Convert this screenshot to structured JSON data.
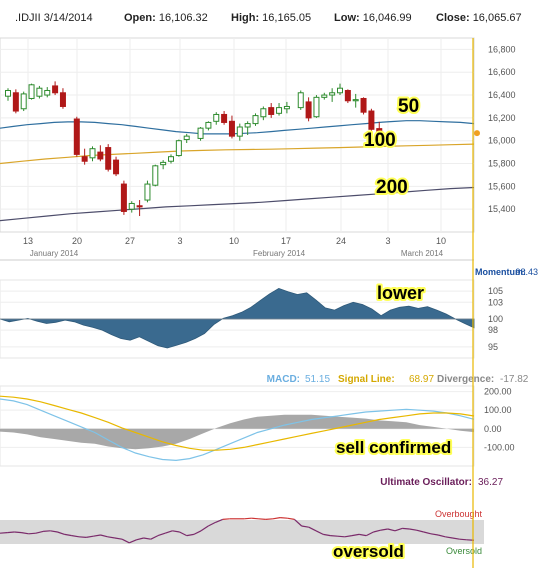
{
  "header": {
    "symbol": ".IDJII 3/14/2014",
    "open_label": "Open:",
    "open": "16,106.32",
    "high_label": "High:",
    "high": "16,165.05",
    "low_label": "Low:",
    "low": "16,046.99",
    "close_label": "Close:",
    "close": "16,065.67"
  },
  "colors": {
    "up": "#2e8b2e",
    "down": "#b01818",
    "ma50": "#2f6f9f",
    "ma100": "#d9a52a",
    "ma200": "#4d4d6b",
    "momentum": "#3a6a8f",
    "macd": "#7ec3e8",
    "signal": "#e8b800",
    "divergence": "#999999",
    "uo": "#7a2a6a",
    "overbought": "#cc3333",
    "cursor": "#e8b800"
  },
  "chart_data": [
    {
      "type": "candlestick",
      "title": ".IDJII 3/14/2014",
      "x_ticks": [
        "13",
        "20",
        "27",
        "3",
        "10",
        "17",
        "24",
        "3",
        "10"
      ],
      "x_months": [
        "January 2014",
        "February 2014",
        "March 2014"
      ],
      "y_ticks": [
        "16,800",
        "16,600",
        "16,400",
        "16,200",
        "16,000",
        "15,800",
        "15,600",
        "15,400"
      ],
      "ylim": [
        15200,
        16900
      ],
      "grid": true,
      "candles": [
        {
          "o": 16390,
          "h": 16460,
          "l": 16350,
          "c": 16440
        },
        {
          "o": 16420,
          "h": 16450,
          "l": 16240,
          "c": 16260
        },
        {
          "o": 16280,
          "h": 16430,
          "l": 16260,
          "c": 16410
        },
        {
          "o": 16370,
          "h": 16500,
          "l": 16360,
          "c": 16490
        },
        {
          "o": 16390,
          "h": 16480,
          "l": 16370,
          "c": 16460
        },
        {
          "o": 16400,
          "h": 16470,
          "l": 16380,
          "c": 16440
        },
        {
          "o": 16480,
          "h": 16520,
          "l": 16400,
          "c": 16420
        },
        {
          "o": 16420,
          "h": 16460,
          "l": 16280,
          "c": 16300
        },
        {
          "o": 16190,
          "h": 16210,
          "l": 15860,
          "c": 15880
        },
        {
          "o": 15860,
          "h": 15930,
          "l": 15790,
          "c": 15820
        },
        {
          "o": 15850,
          "h": 15950,
          "l": 15820,
          "c": 15930
        },
        {
          "o": 15900,
          "h": 15960,
          "l": 15820,
          "c": 15840
        },
        {
          "o": 15940,
          "h": 15970,
          "l": 15730,
          "c": 15750
        },
        {
          "o": 15830,
          "h": 15860,
          "l": 15690,
          "c": 15710
        },
        {
          "o": 15620,
          "h": 15650,
          "l": 15350,
          "c": 15380
        },
        {
          "o": 15400,
          "h": 15470,
          "l": 15370,
          "c": 15450
        },
        {
          "o": 15430,
          "h": 15480,
          "l": 15340,
          "c": 15420
        },
        {
          "o": 15480,
          "h": 15650,
          "l": 15460,
          "c": 15620
        },
        {
          "o": 15610,
          "h": 15790,
          "l": 15600,
          "c": 15780
        },
        {
          "o": 15790,
          "h": 15830,
          "l": 15750,
          "c": 15810
        },
        {
          "o": 15820,
          "h": 15880,
          "l": 15800,
          "c": 15860
        },
        {
          "o": 15870,
          "h": 16010,
          "l": 15860,
          "c": 16000
        },
        {
          "o": 16010,
          "h": 16060,
          "l": 15980,
          "c": 16040
        },
        {
          "o": 16020,
          "h": 16120,
          "l": 16000,
          "c": 16110
        },
        {
          "o": 16110,
          "h": 16170,
          "l": 16090,
          "c": 16160
        },
        {
          "o": 16170,
          "h": 16250,
          "l": 16140,
          "c": 16230
        },
        {
          "o": 16230,
          "h": 16260,
          "l": 16140,
          "c": 16160
        },
        {
          "o": 16170,
          "h": 16220,
          "l": 16020,
          "c": 16040
        },
        {
          "o": 16040,
          "h": 16150,
          "l": 16000,
          "c": 16120
        },
        {
          "o": 16120,
          "h": 16170,
          "l": 16050,
          "c": 16150
        },
        {
          "o": 16150,
          "h": 16240,
          "l": 16130,
          "c": 16220
        },
        {
          "o": 16210,
          "h": 16300,
          "l": 16180,
          "c": 16280
        },
        {
          "o": 16290,
          "h": 16330,
          "l": 16200,
          "c": 16230
        },
        {
          "o": 16240,
          "h": 16330,
          "l": 16220,
          "c": 16290
        },
        {
          "o": 16280,
          "h": 16340,
          "l": 16240,
          "c": 16300
        },
        {
          "o": 16290,
          "h": 16440,
          "l": 16270,
          "c": 16420
        },
        {
          "o": 16340,
          "h": 16380,
          "l": 16170,
          "c": 16200
        },
        {
          "o": 16210,
          "h": 16400,
          "l": 16200,
          "c": 16380
        },
        {
          "o": 16380,
          "h": 16420,
          "l": 16360,
          "c": 16400
        },
        {
          "o": 16400,
          "h": 16460,
          "l": 16340,
          "c": 16420
        },
        {
          "o": 16420,
          "h": 16500,
          "l": 16400,
          "c": 16460
        },
        {
          "o": 16440,
          "h": 16450,
          "l": 16330,
          "c": 16350
        },
        {
          "o": 16350,
          "h": 16410,
          "l": 16290,
          "c": 16360
        },
        {
          "o": 16370,
          "h": 16380,
          "l": 16230,
          "c": 16250
        },
        {
          "o": 16260,
          "h": 16280,
          "l": 16080,
          "c": 16100
        },
        {
          "o": 16106,
          "h": 16165,
          "l": 16047,
          "c": 16066
        }
      ],
      "ma_labels": [
        "50",
        "100",
        "200"
      ],
      "ma50": [
        16110,
        16125,
        16140,
        16150,
        16160,
        16165,
        16165,
        16160,
        16150,
        16140,
        16125,
        16110,
        16095,
        16080,
        16070,
        16060,
        16060,
        16060,
        16065,
        16070,
        16080,
        16090,
        16100,
        16110,
        16120,
        16130,
        16140,
        16150,
        16160,
        16168,
        16175,
        16175,
        16170,
        16165,
        16160,
        16150
      ],
      "ma100": [
        15800,
        15820,
        15840,
        15855,
        15870,
        15880,
        15890,
        15900,
        15910,
        15915,
        15920,
        15923,
        15926,
        15930,
        15935,
        15940,
        15945,
        15950,
        15955,
        15960,
        15965,
        15970
      ],
      "ma200": [
        15300,
        15320,
        15340,
        15360,
        15375,
        15390,
        15405,
        15420,
        15430,
        15440,
        15450,
        15460,
        15475,
        15490,
        15505,
        15520,
        15535,
        15550,
        15565,
        15580,
        15590
      ]
    },
    {
      "type": "area",
      "title": "Momentum:",
      "value": "98.43",
      "annotation": "lower",
      "y_ticks": [
        "105",
        "103",
        "100",
        "98",
        "95"
      ],
      "ylim": [
        93,
        107
      ],
      "baseline": 100,
      "values": [
        100,
        99.5,
        99.8,
        100.1,
        99.6,
        99.2,
        99.4,
        99.8,
        99.5,
        98.9,
        98.5,
        98.0,
        97.2,
        96.5,
        96.2,
        96.8,
        96.0,
        95.2,
        94.8,
        95.3,
        95.8,
        96.5,
        97.4,
        99.0,
        100.1,
        100.6,
        101.2,
        102.1,
        103.3,
        104.5,
        105.5,
        104.9,
        104.4,
        104.7,
        103.4,
        102.0,
        101.6,
        102.4,
        103.0,
        102.6,
        101.8,
        100.6,
        101.6,
        102.1,
        102.3,
        101.9,
        102.2,
        101.6,
        100.9,
        100.0,
        99.2,
        98.43
      ]
    },
    {
      "type": "line",
      "title": "MACD",
      "macd_label": "MACD:",
      "macd_value": "51.15",
      "signal_label": "Signal Line:",
      "signal_value": "68.97",
      "divergence_label": "Divergence:",
      "divergence_value": "-17.82",
      "annotation": "sell confirmed",
      "y_ticks": [
        "200.00",
        "100.00",
        "0.00",
        "-100.00"
      ],
      "ylim": [
        -200,
        230
      ],
      "series": [
        {
          "name": "MACD",
          "values": [
            160,
            150,
            130,
            100,
            70,
            40,
            10,
            -20,
            -60,
            -100,
            -130,
            -150,
            -165,
            -170,
            -160,
            -140,
            -110,
            -80,
            -50,
            -20,
            0,
            20,
            35,
            50,
            60,
            70,
            80,
            90,
            95,
            100,
            105,
            100,
            95,
            85,
            70,
            51
          ]
        },
        {
          "name": "Signal Line",
          "values": [
            175,
            170,
            160,
            145,
            125,
            105,
            85,
            60,
            35,
            5,
            -20,
            -45,
            -70,
            -90,
            -105,
            -115,
            -115,
            -110,
            -100,
            -85,
            -70,
            -55,
            -40,
            -25,
            -10,
            5,
            20,
            35,
            50,
            60,
            70,
            80,
            85,
            85,
            80,
            69
          ]
        },
        {
          "name": "Divergence",
          "values": [
            -15,
            -20,
            -30,
            -45,
            -55,
            -65,
            -75,
            -80,
            -95,
            -105,
            -110,
            -105,
            -95,
            -80,
            -55,
            -25,
            5,
            30,
            50,
            65,
            70,
            75,
            75,
            75,
            70,
            65,
            60,
            55,
            45,
            40,
            35,
            20,
            10,
            0,
            -10,
            -18
          ]
        }
      ]
    },
    {
      "type": "line",
      "title": "Ultimate Oscillator:",
      "value": "36.27",
      "annotation": "oversold",
      "band_labels": [
        "Overbought",
        "Oversold"
      ],
      "ylim": [
        0,
        100
      ],
      "overbought": 70,
      "oversold": 30,
      "values": [
        48,
        49,
        50,
        49,
        47,
        48,
        51,
        52,
        50,
        46,
        44,
        42,
        41,
        43,
        45,
        42,
        40,
        38,
        32,
        37,
        40,
        38,
        44,
        48,
        52,
        50,
        44,
        46,
        52,
        60,
        66,
        71,
        72,
        72,
        72,
        73,
        72,
        71,
        72,
        74,
        73,
        71,
        60,
        58,
        52,
        46,
        44,
        43,
        42,
        44,
        46,
        44,
        50,
        53,
        55,
        52,
        56,
        55,
        53,
        50,
        47,
        45,
        42,
        40,
        38,
        37,
        36.27
      ]
    }
  ]
}
